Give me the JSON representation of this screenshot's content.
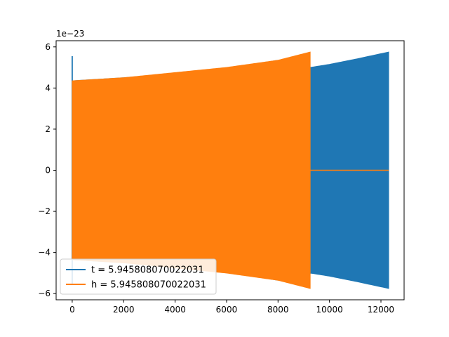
{
  "chart_data": {
    "type": "line",
    "title": "",
    "xlabel": "",
    "ylabel": "",
    "y_offset_text": "1e−23",
    "xlim": [
      -625,
      12900
    ],
    "ylim": [
      -6.3,
      6.3
    ],
    "x_ticks": [
      0,
      2000,
      4000,
      6000,
      8000,
      10000,
      12000
    ],
    "x_tick_labels": [
      "0",
      "2000",
      "4000",
      "6000",
      "8000",
      "10000",
      "12000"
    ],
    "y_ticks": [
      -6,
      -4,
      -2,
      0,
      2,
      4,
      6
    ],
    "y_tick_labels": [
      "−6",
      "−4",
      "−2",
      "0",
      "2",
      "4",
      "6"
    ],
    "grid": false,
    "legend_position": "lower-left",
    "series": [
      {
        "name": "t = 5.945808070022031",
        "color": "#1f77b4",
        "style": "dense-oscillation",
        "x_start": 0,
        "x_end": 12300,
        "initial_spike": 5.55,
        "envelope_x": [
          0,
          2000,
          4000,
          6000,
          8000,
          9250,
          10000,
          11000,
          12300
        ],
        "envelope_amplitude": [
          4.35,
          4.5,
          4.7,
          4.95,
          5.35,
          5.0,
          5.15,
          5.4,
          5.75
        ]
      },
      {
        "name": "h = 5.945808070022031",
        "color": "#ff7f0e",
        "style": "dense-oscillation",
        "x_start": 0,
        "x_end": 9250,
        "envelope_x": [
          0,
          2000,
          4000,
          6000,
          8000,
          9250
        ],
        "envelope_amplitude": [
          4.35,
          4.5,
          4.75,
          5.0,
          5.35,
          5.75
        ],
        "tail_x": [
          9250,
          12300
        ],
        "tail_value": 0
      }
    ]
  }
}
